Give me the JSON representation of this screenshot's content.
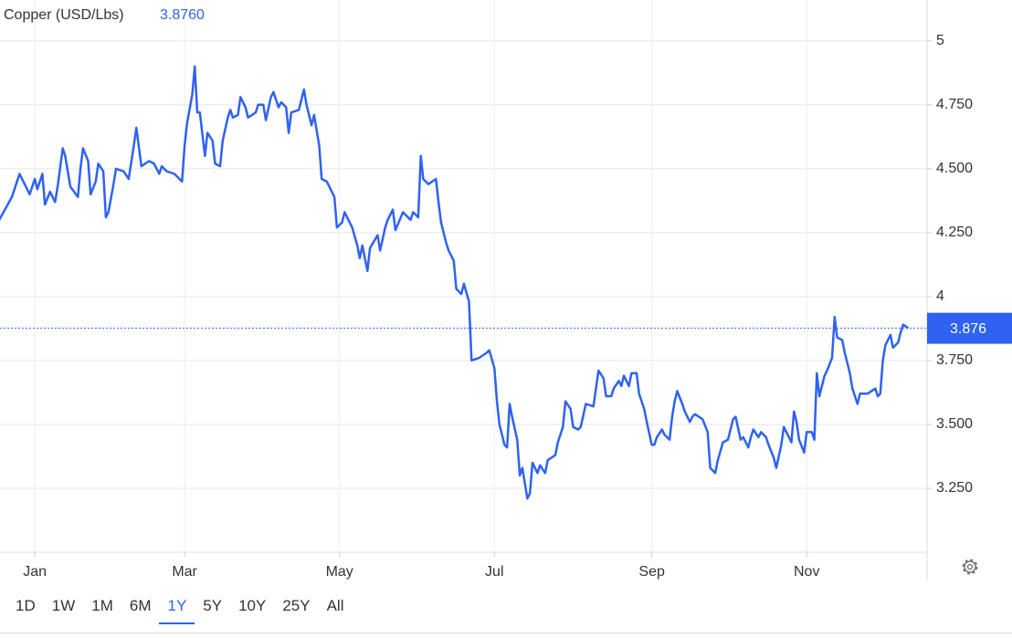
{
  "chart_data": {
    "type": "line",
    "title": "Copper (USD/Lbs)",
    "subtitle": "3.8760",
    "color": "#2f62f0",
    "grid": true,
    "current_value": 3.876,
    "xlim": [
      -13.7,
      351.4
    ],
    "ylim": [
      3.0,
      5.16
    ],
    "xticks": [
      {
        "value": 0,
        "label": "Jan"
      },
      {
        "value": 59,
        "label": "Mar"
      },
      {
        "value": 120,
        "label": "May"
      },
      {
        "value": 181,
        "label": "Jul"
      },
      {
        "value": 243,
        "label": "Sep"
      },
      {
        "value": 304,
        "label": "Nov"
      }
    ],
    "yticks": [
      {
        "value": 3.25,
        "label": "3.250"
      },
      {
        "value": 3.5,
        "label": "3.500"
      },
      {
        "value": 3.75,
        "label": "3.750"
      },
      4,
      {
        "value": 4.25,
        "label": "4.250"
      },
      {
        "value": 4.5,
        "label": "4.500"
      },
      {
        "value": 4.75,
        "label": "4.750"
      },
      5
    ],
    "x": [
      -14,
      -9,
      -6,
      -2,
      0,
      1,
      3,
      4,
      6,
      8,
      9,
      11,
      12,
      14,
      17,
      18,
      19,
      21,
      22,
      24,
      25,
      27,
      28,
      29,
      31,
      32,
      35,
      37,
      39,
      40,
      42,
      45,
      47,
      49,
      50,
      52,
      55,
      58,
      59,
      60,
      62,
      63,
      64,
      65,
      67,
      68,
      70,
      71,
      73,
      74,
      76,
      77,
      78,
      80,
      81,
      83,
      84,
      87,
      88,
      90,
      91,
      93,
      94,
      96,
      97,
      99,
      100,
      101,
      104,
      106,
      107,
      109,
      110,
      112,
      113,
      115,
      118,
      119,
      121,
      122,
      125,
      127,
      128,
      129,
      131,
      132,
      135,
      136,
      138,
      139,
      141,
      142,
      145,
      148,
      149,
      151,
      152,
      153,
      155,
      158,
      159,
      160,
      162,
      163,
      165,
      166,
      168,
      169,
      171,
      172,
      175,
      178,
      179,
      181,
      182,
      183,
      185,
      186,
      187,
      188,
      190,
      191,
      192,
      194,
      195,
      196,
      198,
      199,
      201,
      202,
      205,
      206,
      208,
      209,
      211,
      212,
      214,
      215,
      217,
      220,
      221,
      222,
      224,
      225,
      227,
      228,
      230,
      231,
      232,
      234,
      235,
      237,
      238,
      240,
      241,
      243,
      244,
      245,
      247,
      248,
      250,
      251,
      252,
      253,
      255,
      256,
      258,
      259,
      260,
      263,
      265,
      266,
      268,
      269,
      271,
      273,
      275,
      276,
      278,
      279,
      281,
      282,
      283,
      285,
      286,
      288,
      289,
      291,
      292,
      294,
      295,
      297,
      298,
      299,
      300,
      301,
      303,
      304,
      306,
      307,
      308,
      309,
      311,
      312,
      314,
      315,
      316,
      318,
      319,
      321,
      322,
      324,
      325,
      328,
      331,
      332,
      333,
      334,
      335,
      337,
      338,
      340,
      341,
      342,
      344
    ],
    "values": [
      4.3,
      4.39,
      4.48,
      4.4,
      4.46,
      4.42,
      4.48,
      4.36,
      4.41,
      4.37,
      4.43,
      4.58,
      4.55,
      4.43,
      4.39,
      4.5,
      4.58,
      4.53,
      4.4,
      4.45,
      4.52,
      4.49,
      4.31,
      4.33,
      4.44,
      4.5,
      4.49,
      4.46,
      4.59,
      4.66,
      4.51,
      4.53,
      4.52,
      4.48,
      4.51,
      4.49,
      4.48,
      4.45,
      4.59,
      4.68,
      4.79,
      4.9,
      4.72,
      4.72,
      4.55,
      4.64,
      4.61,
      4.52,
      4.51,
      4.61,
      4.7,
      4.73,
      4.7,
      4.71,
      4.78,
      4.74,
      4.7,
      4.72,
      4.75,
      4.75,
      4.69,
      4.78,
      4.8,
      4.74,
      4.76,
      4.74,
      4.64,
      4.72,
      4.73,
      4.81,
      4.75,
      4.67,
      4.71,
      4.59,
      4.46,
      4.45,
      4.39,
      4.27,
      4.29,
      4.33,
      4.27,
      4.2,
      4.15,
      4.2,
      4.1,
      4.19,
      4.24,
      4.18,
      4.27,
      4.3,
      4.34,
      4.26,
      4.33,
      4.3,
      4.33,
      4.31,
      4.55,
      4.46,
      4.44,
      4.46,
      4.37,
      4.29,
      4.21,
      4.18,
      4.14,
      4.03,
      4.01,
      4.05,
      3.98,
      3.75,
      3.76,
      3.78,
      3.79,
      3.72,
      3.59,
      3.5,
      3.42,
      3.41,
      3.58,
      3.53,
      3.44,
      3.3,
      3.33,
      3.21,
      3.23,
      3.35,
      3.31,
      3.34,
      3.31,
      3.36,
      3.38,
      3.43,
      3.49,
      3.59,
      3.56,
      3.49,
      3.48,
      3.49,
      3.58,
      3.57,
      3.64,
      3.71,
      3.68,
      3.61,
      3.61,
      3.64,
      3.67,
      3.65,
      3.69,
      3.65,
      3.7,
      3.7,
      3.62,
      3.56,
      3.51,
      3.42,
      3.42,
      3.45,
      3.48,
      3.46,
      3.44,
      3.53,
      3.59,
      3.63,
      3.58,
      3.55,
      3.51,
      3.53,
      3.54,
      3.52,
      3.47,
      3.33,
      3.31,
      3.36,
      3.43,
      3.44,
      3.52,
      3.53,
      3.44,
      3.45,
      3.41,
      3.45,
      3.48,
      3.45,
      3.47,
      3.45,
      3.42,
      3.37,
      3.33,
      3.42,
      3.49,
      3.45,
      3.43,
      3.55,
      3.51,
      3.44,
      3.39,
      3.47,
      3.47,
      3.44,
      3.7,
      3.61,
      3.69,
      3.71,
      3.76,
      3.92,
      3.84,
      3.83,
      3.78,
      3.7,
      3.64,
      3.58,
      3.62,
      3.62,
      3.64,
      3.61,
      3.62,
      3.75,
      3.81,
      3.85,
      3.8,
      3.82,
      3.86,
      3.89,
      3.876
    ]
  },
  "range_buttons": [
    "1D",
    "1W",
    "1M",
    "6M",
    "1Y",
    "5Y",
    "10Y",
    "25Y",
    "All"
  ],
  "selected_range": 4
}
